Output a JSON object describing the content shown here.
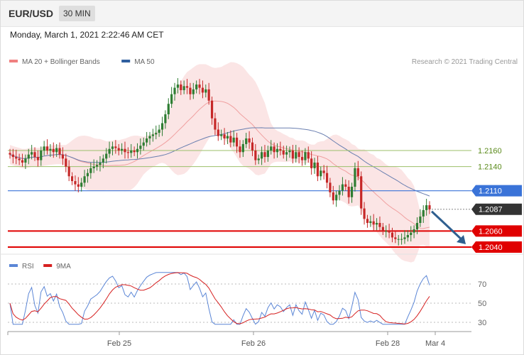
{
  "header": {
    "symbol": "EUR/USD",
    "timeframe": "30 MIN",
    "datetime": "Monday, March 1, 2021 2:22:46 AM CET"
  },
  "legend_main": [
    {
      "label": "MA 20 + Bollinger Bands",
      "color": "#f08080"
    },
    {
      "label": "MA 50",
      "color": "#2f5f9f"
    }
  ],
  "credit": "Research © 2021 Trading Central",
  "legend_rsi": [
    {
      "label": "RSI",
      "color": "#5b86d6"
    },
    {
      "label": "9MA",
      "color": "#d62020"
    }
  ],
  "colors": {
    "bull": "#2e7d32",
    "bear": "#c62828",
    "pivot_blue": "#3a73d8",
    "support_red": "#e00000",
    "resistance_green": "#9bbf6a",
    "last_price": "#333333",
    "arrow": "#2f5f8f"
  },
  "chart_data": {
    "type": "candlestick",
    "price_axis": {
      "min": 2.0,
      "max": 1.22,
      "note": "unused"
    },
    "levels": [
      {
        "value": 1.216,
        "label": "1.2160",
        "kind": "resistance"
      },
      {
        "value": 1.214,
        "label": "1.2140",
        "kind": "resistance"
      },
      {
        "value": 1.211,
        "label": "1.2110",
        "kind": "pivot"
      },
      {
        "value": 1.2087,
        "label": "1.2087",
        "kind": "last"
      },
      {
        "value": 1.206,
        "label": "1.2060",
        "kind": "support"
      },
      {
        "value": 1.204,
        "label": "1.2040",
        "kind": "support"
      }
    ],
    "x_labels": [
      "Feb 25",
      "Feb 26",
      "Feb 28",
      "Mar 4"
    ],
    "rsi_ticks": [
      "70",
      "50",
      "30"
    ],
    "closes": [
      1.2155,
      1.2152,
      1.215,
      1.2148,
      1.2145,
      1.215,
      1.2155,
      1.2158,
      1.2152,
      1.2148,
      1.216,
      1.2165,
      1.216,
      1.2162,
      1.2158,
      1.2163,
      1.2155,
      1.215,
      1.214,
      1.2128,
      1.2122,
      1.2118,
      1.2115,
      1.212,
      1.2128,
      1.2132,
      1.2138,
      1.214,
      1.2142,
      1.2145,
      1.215,
      1.2156,
      1.2162,
      1.2165,
      1.2163,
      1.216,
      1.2162,
      1.2158,
      1.2157,
      1.216,
      1.2158,
      1.2162,
      1.2166,
      1.217,
      1.2175,
      1.2178,
      1.218,
      1.2182,
      1.2186,
      1.2194,
      1.2205,
      1.2218,
      1.223,
      1.2238,
      1.2242,
      1.2235,
      1.224,
      1.2238,
      1.223,
      1.2236,
      1.2242,
      1.2238,
      1.2232,
      1.2236,
      1.2222,
      1.22,
      1.2186,
      1.2178,
      1.218,
      1.2175,
      1.2178,
      1.217,
      1.2176,
      1.2165,
      1.2158,
      1.2168,
      1.2175,
      1.217,
      1.216,
      1.2148,
      1.215,
      1.2158,
      1.2152,
      1.216,
      1.2165,
      1.2158,
      1.2162,
      1.216,
      1.2155,
      1.2158,
      1.216,
      1.215,
      1.2158,
      1.2152,
      1.2148,
      1.2158,
      1.215,
      1.2138,
      1.2145,
      1.2128,
      1.2135,
      1.2132,
      1.212,
      1.2108,
      1.2098,
      1.2105,
      1.211,
      1.2118,
      1.2115,
      1.2102,
      1.2115,
      1.2138,
      1.2128,
      1.2088,
      1.2075,
      1.207,
      1.2072,
      1.2068,
      1.207,
      1.2065,
      1.206,
      1.206,
      1.2058,
      1.2052,
      1.205,
      1.205,
      1.205,
      1.2052,
      1.2055,
      1.2058,
      1.2062,
      1.207,
      1.2078,
      1.2086,
      1.2092,
      1.2087
    ]
  }
}
